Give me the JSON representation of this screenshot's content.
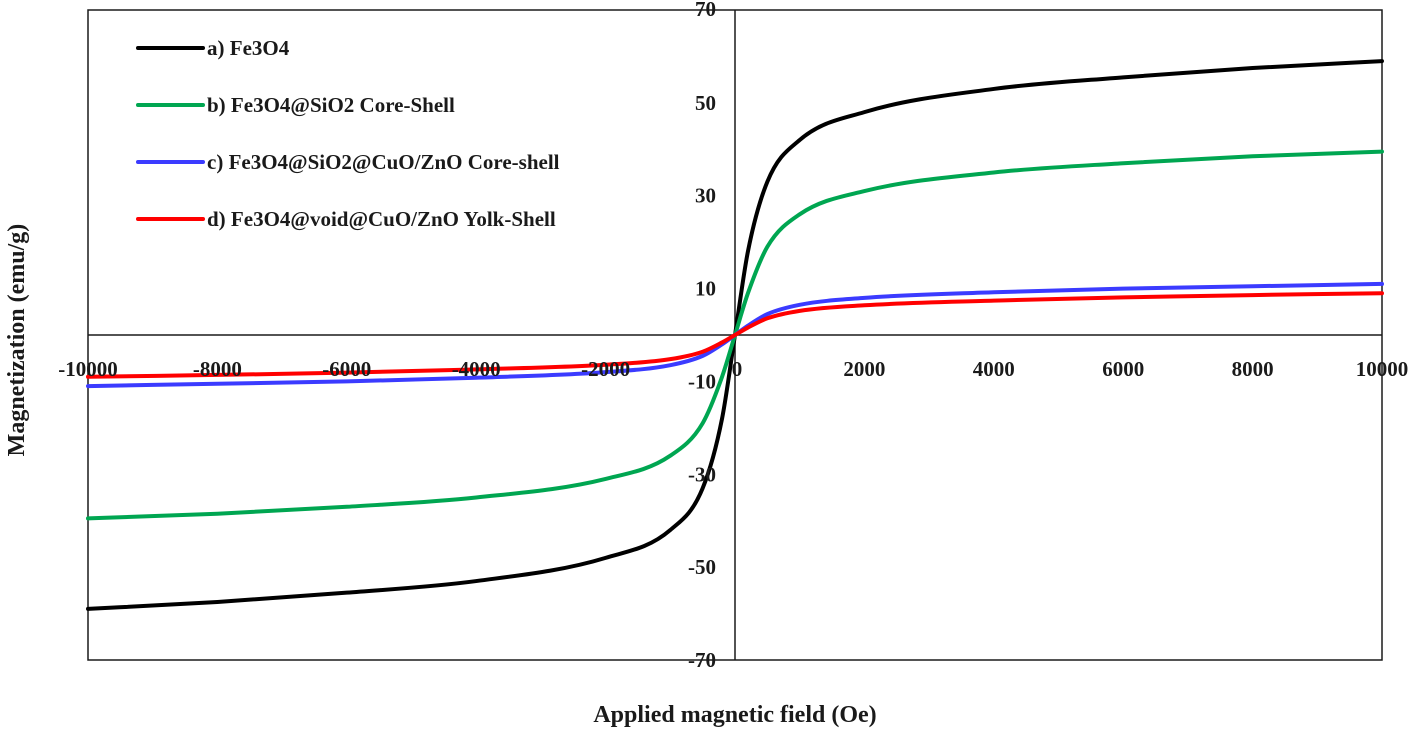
{
  "chart_data": {
    "type": "line",
    "xlabel": "Applied  magnetic field (Oe)",
    "ylabel": "Magnetization (emu/g)",
    "xlim": [
      -10000,
      10000
    ],
    "ylim": [
      -70,
      70
    ],
    "xticks": [
      -10000,
      -8000,
      -6000,
      -4000,
      -2000,
      0,
      2000,
      4000,
      6000,
      8000,
      10000
    ],
    "xtick_labels": [
      "-10000",
      "-8000",
      "-6000",
      "-4000",
      "-2000",
      "0",
      "2000",
      "4000",
      "6000",
      "8000",
      "10000"
    ],
    "yticks": [
      70,
      50,
      30,
      10,
      -10,
      -30,
      -50,
      -70
    ],
    "ytick_labels": [
      "70",
      "50",
      "30",
      "10",
      "-10",
      "-30",
      "-50",
      "-70"
    ],
    "grid": false,
    "legend_position": "top-left",
    "x": [
      -10000,
      -8000,
      -6000,
      -4000,
      -2000,
      -1000,
      -500,
      -200,
      0,
      200,
      500,
      1000,
      2000,
      4000,
      6000,
      8000,
      10000
    ],
    "series": [
      {
        "name": "a) Fe3O4",
        "color": "#000000",
        "values": [
          -59,
          -57.5,
          -55.5,
          -53,
          -48,
          -42,
          -33,
          -18,
          0,
          18,
          33,
          42,
          48,
          53,
          55.5,
          57.5,
          59
        ]
      },
      {
        "name": "b) Fe3O4@SiO2 Core-Shell",
        "color": "#00a651",
        "values": [
          -39.5,
          -38.5,
          -37,
          -35,
          -31,
          -26,
          -19,
          -9,
          0,
          9,
          19,
          26,
          31,
          35,
          37,
          38.5,
          39.5
        ]
      },
      {
        "name": "c) Fe3O4@SiO2@CuO/ZnO Core-shell",
        "color": "#3b3bff",
        "values": [
          -11,
          -10.5,
          -10,
          -9.2,
          -8,
          -6.5,
          -4.5,
          -2,
          0,
          2,
          4.5,
          6.5,
          8,
          9.2,
          10,
          10.5,
          11
        ]
      },
      {
        "name": "d) Fe3O4@void@CuO/ZnO Yolk-Shell",
        "color": "#ff0000",
        "values": [
          -9,
          -8.6,
          -8.1,
          -7.4,
          -6.4,
          -5.2,
          -3.6,
          -1.6,
          0,
          1.6,
          3.6,
          5.2,
          6.4,
          7.4,
          8.1,
          8.6,
          9
        ]
      }
    ]
  }
}
